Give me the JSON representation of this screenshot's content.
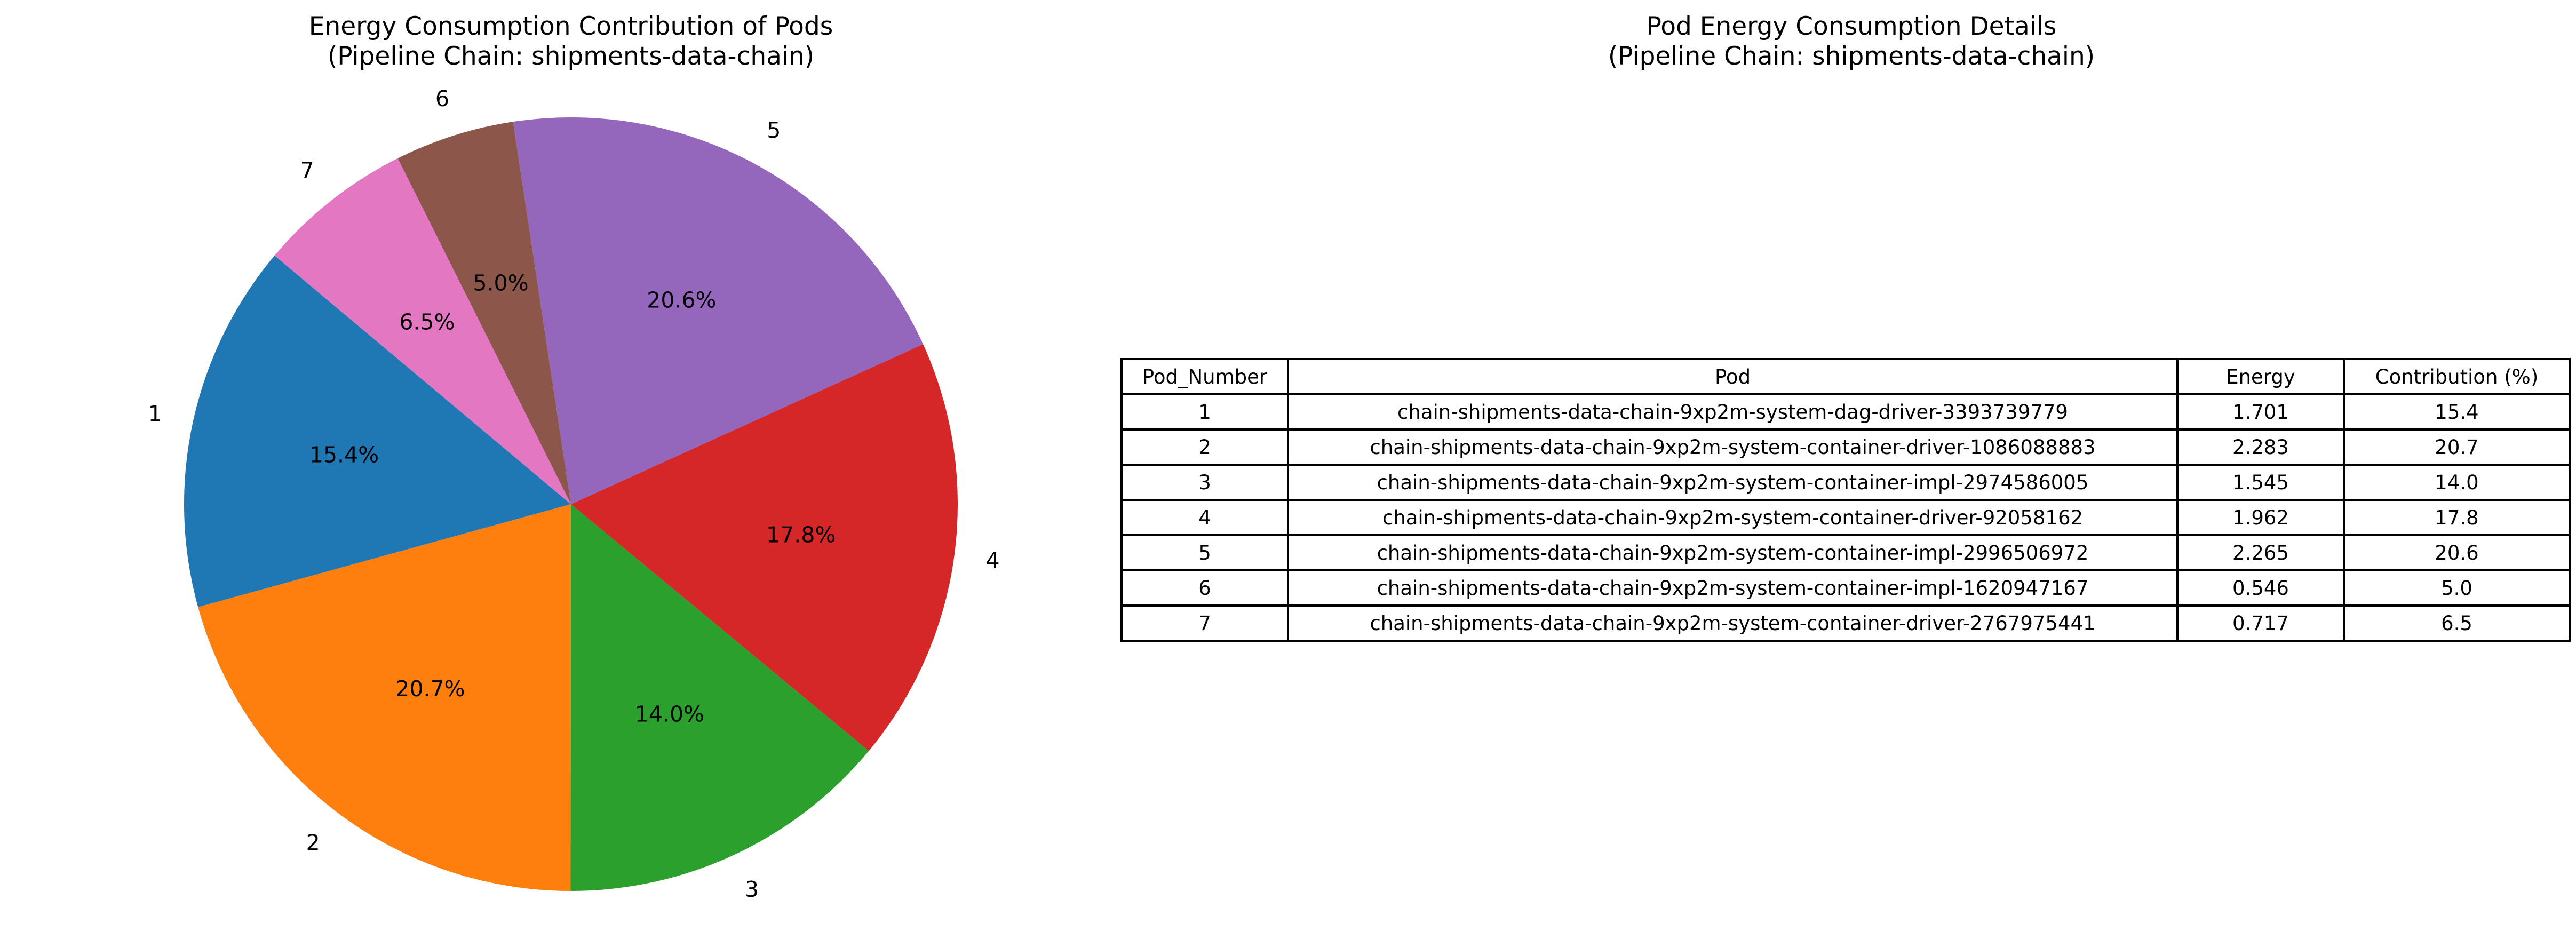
{
  "titles": {
    "pie_line1": "Energy Consumption Contribution of Pods",
    "pie_line2": "(Pipeline Chain: shipments-data-chain)",
    "table_line1": "Pod Energy Consumption Details",
    "table_line2": "(Pipeline Chain: shipments-data-chain)"
  },
  "chart_data": [
    {
      "type": "pie",
      "title": "Energy Consumption Contribution of Pods\n(Pipeline Chain: shipments-data-chain)",
      "labels": [
        "1",
        "2",
        "3",
        "4",
        "5",
        "6",
        "7"
      ],
      "values": [
        15.4,
        20.7,
        14.0,
        17.8,
        20.6,
        5.0,
        6.5
      ],
      "pct_labels": [
        "15.4%",
        "20.7%",
        "14.0%",
        "17.8%",
        "20.6%",
        "5.0%",
        "6.5%"
      ],
      "colors": [
        "#1f77b4",
        "#ff7f0e",
        "#2ca02c",
        "#d62728",
        "#9467bd",
        "#8c564b",
        "#e377c2"
      ],
      "start_angle_deg": 140,
      "direction": "counterclockwise"
    },
    {
      "type": "table",
      "title": "Pod Energy Consumption Details\n(Pipeline Chain: shipments-data-chain)",
      "columns": [
        "Pod_Number",
        "Pod",
        "Energy",
        "Contribution (%)"
      ],
      "rows": [
        [
          "1",
          "chain-shipments-data-chain-9xp2m-system-dag-driver-3393739779",
          "1.701",
          "15.4"
        ],
        [
          "2",
          "chain-shipments-data-chain-9xp2m-system-container-driver-1086088883",
          "2.283",
          "20.7"
        ],
        [
          "3",
          "chain-shipments-data-chain-9xp2m-system-container-impl-2974586005",
          "1.545",
          "14.0"
        ],
        [
          "4",
          "chain-shipments-data-chain-9xp2m-system-container-driver-92058162",
          "1.962",
          "17.8"
        ],
        [
          "5",
          "chain-shipments-data-chain-9xp2m-system-container-impl-2996506972",
          "2.265",
          "20.6"
        ],
        [
          "6",
          "chain-shipments-data-chain-9xp2m-system-container-impl-1620947167",
          "0.546",
          "5.0"
        ],
        [
          "7",
          "chain-shipments-data-chain-9xp2m-system-container-driver-2767975441",
          "0.717",
          "6.5"
        ]
      ]
    }
  ]
}
